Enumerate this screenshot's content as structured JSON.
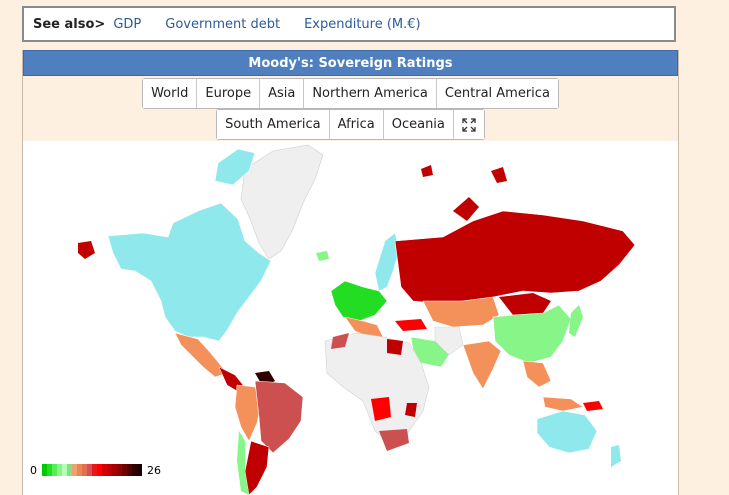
{
  "see_also": {
    "label": "See also>",
    "links": [
      "GDP",
      "Government debt",
      "Expenditure (M.€)"
    ]
  },
  "panel": {
    "title": "Moody's: Sovereign Ratings",
    "region_buttons_row1": [
      "World",
      "Europe",
      "Asia",
      "Northern America",
      "Central America"
    ],
    "region_buttons_row2": [
      "South America",
      "Africa",
      "Oceania"
    ],
    "fullscreen_icon": "expand-icon"
  },
  "legend": {
    "min": "0",
    "max": "26",
    "colors": [
      "#00c800",
      "#22dd22",
      "#55ee55",
      "#88f588",
      "#b8ffb8",
      "#7fe17f",
      "#f0a070",
      "#e88850",
      "#e07050",
      "#d85050",
      "#e81818",
      "#ff0000",
      "#d40000",
      "#c00000",
      "#a80000",
      "#900000",
      "#700000",
      "#500000",
      "#300000",
      "#1a0000"
    ]
  },
  "colors": {
    "accent_header": "#4f7fbf",
    "link": "#2d5b9a",
    "page_bg": "#fdf0e0",
    "map_unrated": "#efefef",
    "map_cyan": "#8ee8ec",
    "map_green": "#88f588",
    "map_orange": "#f4905a",
    "map_red": "#c00000",
    "map_salmon": "#cc5050"
  }
}
